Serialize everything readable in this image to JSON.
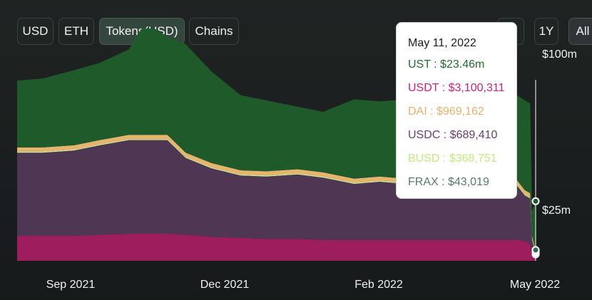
{
  "toolbar": {
    "left_buttons": [
      "USD",
      "ETH",
      "Tokens(USD)",
      "Chains"
    ],
    "right_buttons": [
      "1Y",
      "All"
    ]
  },
  "colors": {
    "UST": "#1f5a2b",
    "USDT": "#9e1e5d",
    "DAI": "#e5b46d",
    "USDC": "#4f3653",
    "BUSD": "#d4ee9c",
    "FRAX": "#2c6b52"
  },
  "chart_data": {
    "type": "area",
    "stacked": true,
    "x_ticks": [
      "Sep 2021",
      "Dec 2021",
      "Feb 2022",
      "May 2022"
    ],
    "y_ticks": [
      "$100m",
      "$25m"
    ],
    "y_tick_values": [
      100,
      25
    ],
    "y_unit": "$m",
    "ylim": [
      0,
      110
    ],
    "x": [
      "2021-08-01",
      "2021-08-15",
      "2021-09-01",
      "2021-09-15",
      "2021-10-01",
      "2021-10-08",
      "2021-10-15",
      "2021-10-22",
      "2021-11-01",
      "2021-11-15",
      "2021-12-01",
      "2021-12-15",
      "2022-01-01",
      "2022-01-15",
      "2022-02-01",
      "2022-02-15",
      "2022-03-01",
      "2022-03-15",
      "2022-04-01",
      "2022-04-15",
      "2022-04-25",
      "2022-05-01",
      "2022-05-05",
      "2022-05-08",
      "2022-05-09",
      "2022-05-11"
    ],
    "series": [
      {
        "name": "USDT",
        "values": [
          12,
          12,
          12,
          12.5,
          13,
          13,
          13,
          13,
          12.5,
          11.5,
          11,
          10.5,
          10.5,
          10,
          10,
          10,
          10,
          10,
          10,
          10,
          10,
          10,
          9.5,
          8,
          4,
          3.1
        ]
      },
      {
        "name": "USDC",
        "values": [
          40,
          40,
          41,
          43,
          45,
          45,
          45,
          45,
          37,
          33,
          30,
          30,
          31,
          30,
          27,
          28,
          27,
          29,
          33,
          35,
          35,
          26,
          22,
          22,
          6,
          0.69
        ]
      },
      {
        "name": "BUSD",
        "values": [
          0.5,
          0.5,
          0.5,
          0.5,
          0.5,
          0.5,
          0.5,
          0.5,
          0.5,
          0.5,
          0.5,
          0.5,
          0.5,
          0.5,
          0.5,
          0.5,
          0.5,
          0.5,
          0.5,
          0.5,
          0.5,
          0.5,
          0.5,
          0.5,
          0.4,
          0.37
        ]
      },
      {
        "name": "DAI",
        "values": [
          2,
          2,
          2,
          2,
          2,
          2,
          2,
          2,
          2,
          2,
          2,
          2,
          2,
          2,
          2,
          2,
          2,
          2,
          2,
          2,
          2,
          2,
          2,
          2,
          1.5,
          0.97
        ]
      },
      {
        "name": "FRAX",
        "values": [
          0.1,
          0.1,
          0.1,
          0.1,
          0.1,
          0.1,
          0.1,
          0.1,
          0.1,
          0.1,
          0.1,
          0.1,
          0.1,
          0.1,
          0.1,
          0.1,
          0.1,
          0.1,
          0.1,
          0.1,
          0.1,
          0.1,
          0.1,
          0.1,
          0.05,
          0.04
        ]
      },
      {
        "name": "UST",
        "values": [
          32,
          33,
          36,
          37,
          41,
          51,
          51,
          47,
          52,
          44,
          36,
          34,
          30,
          29,
          38,
          36,
          38,
          37,
          33,
          31,
          38,
          41,
          43,
          43,
          12,
          23.46
        ]
      }
    ],
    "tooltip": {
      "date": "May 11, 2022",
      "rows": [
        {
          "name": "UST",
          "value": "$23.46m",
          "color": "#1f6e2c"
        },
        {
          "name": "USDT",
          "value": "$3,100,311",
          "color": "#d11d7a"
        },
        {
          "name": "DAI",
          "value": "$969,162",
          "color": "#e8b16a"
        },
        {
          "name": "USDC",
          "value": "$689,410",
          "color": "#6a3e73"
        },
        {
          "name": "BUSD",
          "value": "$368,751",
          "color": "#c4ea7c"
        },
        {
          "name": "FRAX",
          "value": "$43,019",
          "color": "#5a7a6a"
        }
      ]
    }
  }
}
